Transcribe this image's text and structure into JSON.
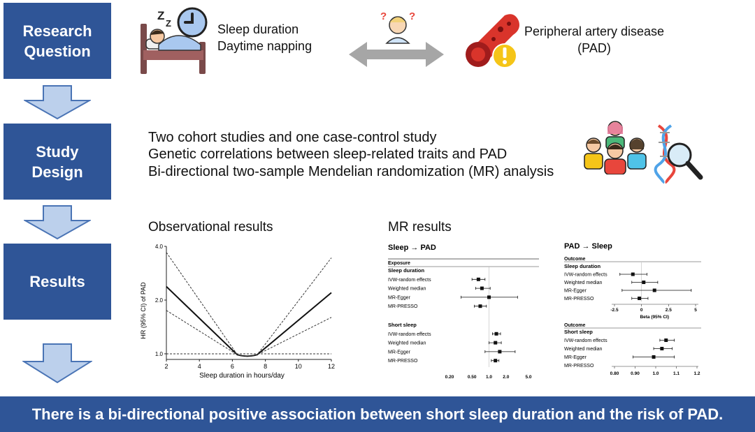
{
  "steps": [
    {
      "label": "Research\nQuestion"
    },
    {
      "label": "Study\nDesign"
    },
    {
      "label": "Results"
    }
  ],
  "research": {
    "exposure_line1": "Sleep duration",
    "exposure_line2": "Daytime napping",
    "outcome_line1": "Peripheral artery disease",
    "outcome_line2": "(PAD)"
  },
  "design": {
    "lines": [
      "Two cohort studies and one case-control study",
      "Genetic correlations between sleep-related traits and PAD",
      "Bi-directional two-sample Mendelian randomization (MR) analysis"
    ]
  },
  "results": {
    "observational_title": "Observational results",
    "mr_title": "MR results"
  },
  "conclusion": "There is a bi-directional positive association between short sleep duration and the risk of PAD.",
  "chart_data": [
    {
      "type": "line",
      "title": "Observational results",
      "xlabel": "Sleep duration in hours/day",
      "ylabel": "HR (95% CI) of PAD",
      "xlim": [
        2,
        12
      ],
      "ylim": [
        1.0,
        4.0
      ],
      "xticks": [
        2,
        4,
        6,
        8,
        10,
        12
      ],
      "yticks": [
        "1.0",
        "2.0",
        "4.0"
      ],
      "series": [
        {
          "name": "HR",
          "x": [
            2,
            6.9,
            12
          ],
          "y": [
            2.38,
            0.97,
            2.2
          ]
        },
        {
          "name": "upper CI",
          "x": [
            2,
            6.9,
            12
          ],
          "y": [
            3.7,
            0.97,
            3.45
          ]
        },
        {
          "name": "lower CI",
          "x": [
            2,
            6.9,
            12
          ],
          "y": [
            1.75,
            0.97,
            1.6
          ]
        },
        {
          "name": "reference",
          "x": [
            2,
            12
          ],
          "y": [
            1.0,
            1.0
          ]
        }
      ]
    },
    {
      "type": "forest",
      "title": "Sleep → PAD",
      "column_header": "Exposure",
      "xticks": [
        "0.20",
        "0.50",
        "1.0",
        "2.0",
        "5.0"
      ],
      "groups": [
        {
          "name": "Sleep duration",
          "rows": [
            {
              "label": "IVW-random effects",
              "est": 0.65,
              "lo": 0.5,
              "hi": 0.85
            },
            {
              "label": "Weighted median",
              "est": 0.75,
              "lo": 0.58,
              "hi": 1.05
            },
            {
              "label": "MR-Egger",
              "est": 1.0,
              "lo": 0.32,
              "hi": 3.2
            },
            {
              "label": "MR-PRESSO",
              "est": 0.7,
              "lo": 0.55,
              "hi": 0.9
            }
          ]
        },
        {
          "name": "Short sleep",
          "rows": [
            {
              "label": "IVW-random effects",
              "est": 1.35,
              "lo": 1.15,
              "hi": 1.6
            },
            {
              "label": "Weighted median",
              "est": 1.3,
              "lo": 1.0,
              "hi": 1.65
            },
            {
              "label": "MR-Egger",
              "est": 1.55,
              "lo": 0.85,
              "hi": 2.9
            },
            {
              "label": "MR-PRESSO",
              "est": 1.3,
              "lo": 1.1,
              "hi": 1.5
            }
          ]
        }
      ]
    },
    {
      "type": "forest",
      "title": "PAD → Sleep",
      "column_header": "Outcome",
      "groups": [
        {
          "name": "Sleep duration",
          "xlabel": "Beta (95% CI)",
          "xticks": [
            "-2.5",
            "0",
            "2.5",
            "5"
          ],
          "rows": [
            {
              "label": "IVW-random effects",
              "est": -0.8,
              "lo": -2.0,
              "hi": 0.5
            },
            {
              "label": "Weighted median",
              "est": 0.2,
              "lo": -0.9,
              "hi": 1.5
            },
            {
              "label": "MR-Egger",
              "est": 1.2,
              "lo": -1.8,
              "hi": 4.6
            },
            {
              "label": "MR-PRESSO",
              "est": -0.2,
              "lo": -0.9,
              "hi": 0.6
            }
          ]
        },
        {
          "name": "Short sleep",
          "xticks": [
            "0.80",
            "0.90",
            "1.0",
            "1.1",
            "1.2"
          ],
          "rows": [
            {
              "label": "IVW-random effects",
              "est": 1.05,
              "lo": 1.02,
              "hi": 1.09
            },
            {
              "label": "Weighted median",
              "est": 1.03,
              "lo": 0.99,
              "hi": 1.08
            },
            {
              "label": "MR-Egger",
              "est": 0.99,
              "lo": 0.89,
              "hi": 1.09
            },
            {
              "label": "MR-PRESSO",
              "est": null,
              "lo": null,
              "hi": null
            }
          ]
        }
      ]
    }
  ]
}
